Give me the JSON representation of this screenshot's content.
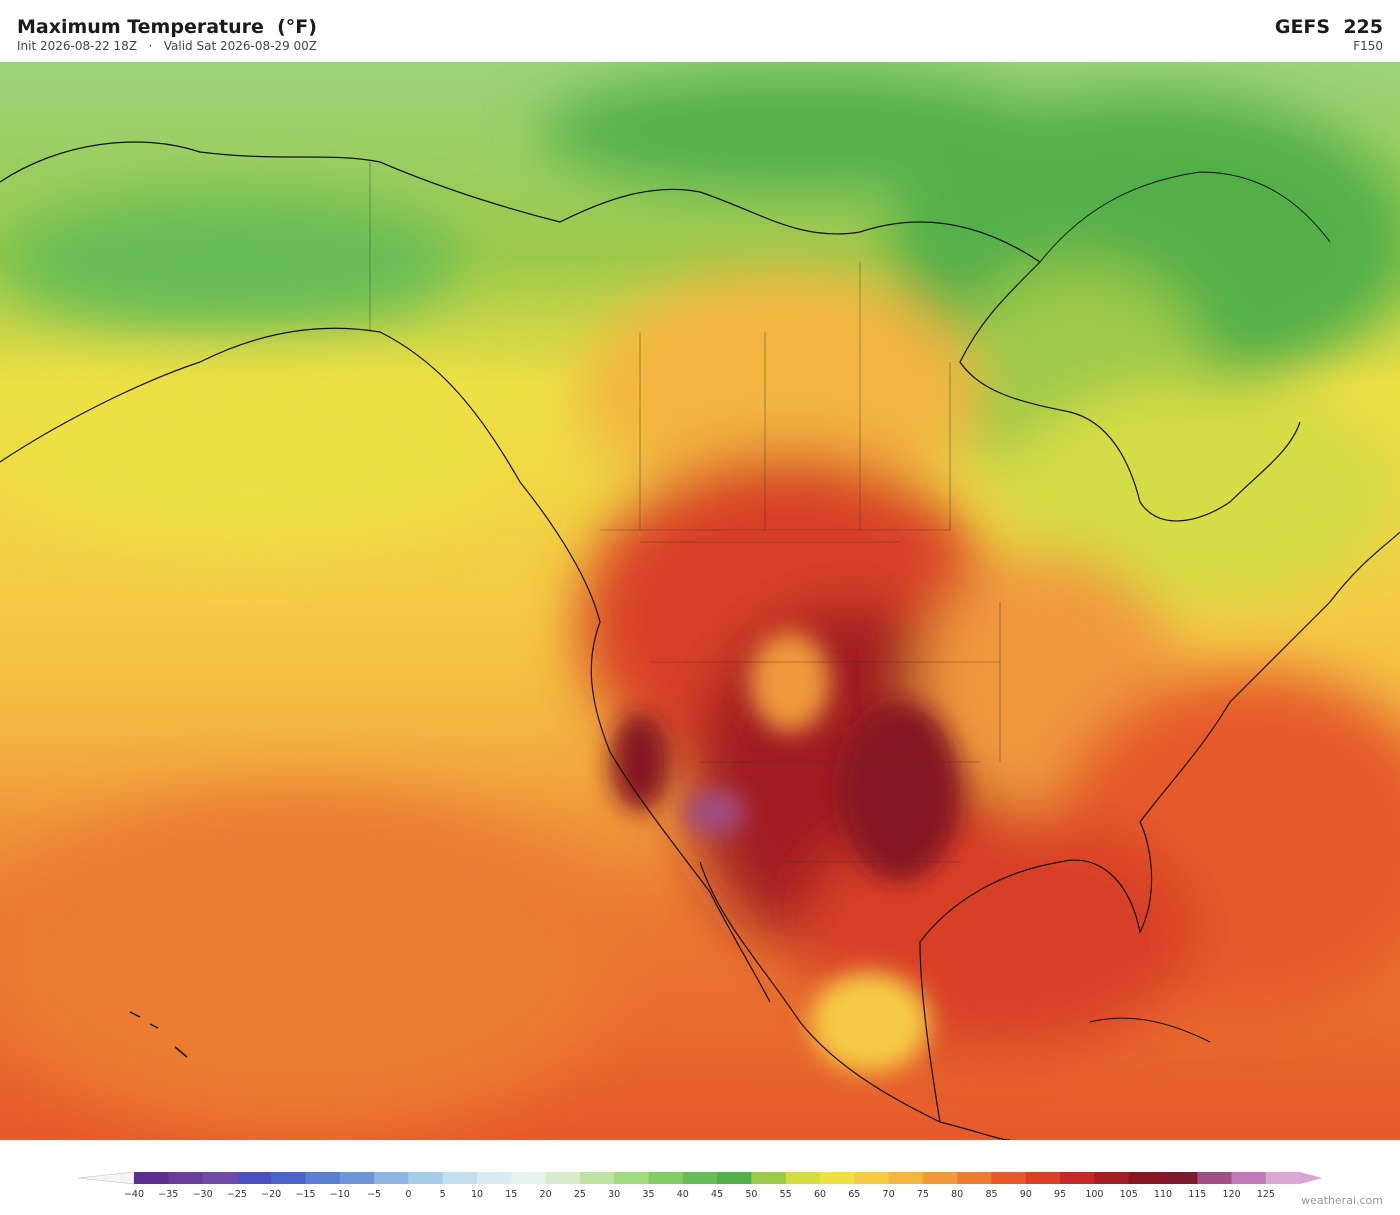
{
  "header": {
    "title": "Maximum Temperature  (°F)",
    "subtitle": "Init 2026-08-22 18Z   ·   Valid Sat 2026-08-29 00Z",
    "model": "GEFS  225",
    "forecast_hour": "F150"
  },
  "colorbar": {
    "labels": [
      "−40",
      "−35",
      "−30",
      "−25",
      "−20",
      "−15",
      "−10",
      "−5",
      "0",
      "5",
      "10",
      "15",
      "20",
      "25",
      "30",
      "35",
      "40",
      "45",
      "50",
      "55",
      "60",
      "65",
      "70",
      "75",
      "80",
      "85",
      "90",
      "95",
      "100",
      "105",
      "110",
      "115",
      "120",
      "125"
    ],
    "colors": [
      "#5a2d91",
      "#6a3d9a",
      "#6f4aa8",
      "#4b4fbf",
      "#4d62c9",
      "#5b7fd0",
      "#6e93d6",
      "#8fb5e0",
      "#a8cde8",
      "#c3e0ee",
      "#d8ecf2",
      "#e6f3ea",
      "#d8eccc",
      "#bfe3a4",
      "#a3d97f",
      "#86cc66",
      "#68bd57",
      "#52b04a",
      "#9cc94a",
      "#d4dd45",
      "#ede045",
      "#f5cc45",
      "#f3b541",
      "#f09a3c",
      "#ec7c33",
      "#e55a2b",
      "#d83f27",
      "#c02a27",
      "#a01e24",
      "#861722",
      "#7a1a2a",
      "#a04e85",
      "#c27bb5",
      "#dba8d6"
    ],
    "under_color": "#f4f4f4",
    "over_color": "#d9a6d4"
  },
  "footer": {
    "credit": "weatherai.com"
  }
}
